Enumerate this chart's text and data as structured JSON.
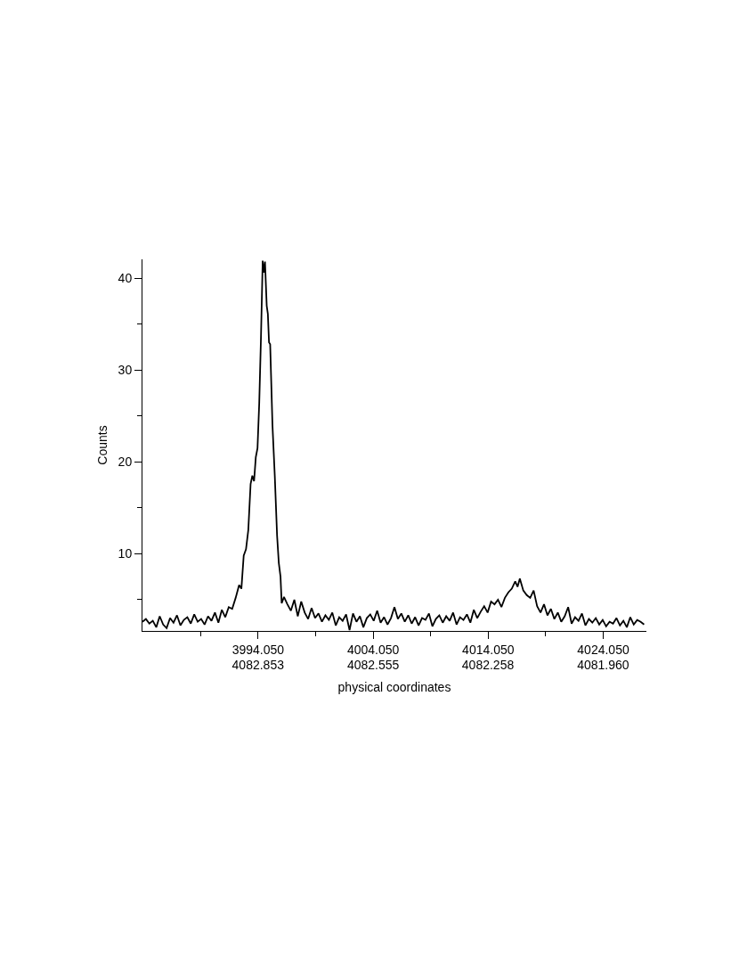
{
  "chart_data": {
    "type": "line",
    "xlabel": "physical coordinates",
    "ylabel": "Counts",
    "marker": "none",
    "line_style": "solid",
    "xlim": [
      3984.0,
      4027.8
    ],
    "ylim": [
      1.6,
      42.05
    ],
    "xticks": [
      {
        "value": 3989.05,
        "label": null
      },
      {
        "value": 3994.05,
        "label": "3994.050"
      },
      {
        "value": 3999.05,
        "label": null
      },
      {
        "value": 4004.05,
        "label": "4004.050"
      },
      {
        "value": 4009.05,
        "label": null
      },
      {
        "value": 4014.05,
        "label": "4014.050"
      },
      {
        "value": 4019.05,
        "label": null
      },
      {
        "value": 4024.05,
        "label": "4024.050"
      }
    ],
    "x2lim": [
      4083.152,
      4081.848
    ],
    "x2ticks": [
      {
        "value": 4082.853,
        "label": "4082.853"
      },
      {
        "value": 4082.555,
        "label": "4082.555"
      },
      {
        "value": 4082.258,
        "label": "4082.258"
      },
      {
        "value": 4081.96,
        "label": "4081.960"
      }
    ],
    "yticks": [
      {
        "value": 5,
        "label": null
      },
      10,
      {
        "value": 15,
        "label": null
      },
      20,
      {
        "value": 25,
        "label": null
      },
      30,
      {
        "value": 35,
        "label": null
      },
      40
    ],
    "series": [
      {
        "color": "#000000",
        "x": [
          3984.0,
          3984.3,
          3984.6,
          3984.9,
          3985.2,
          3985.5,
          3985.8,
          3986.1,
          3986.4,
          3986.7,
          3987.0,
          3987.3,
          3987.6,
          3987.9,
          3988.2,
          3988.5,
          3988.8,
          3989.1,
          3989.4,
          3989.7,
          3990.0,
          3990.3,
          3990.6,
          3990.9,
          3991.2,
          3991.5,
          3991.8,
          3992.1,
          3992.4,
          3992.6,
          3992.8,
          3993.0,
          3993.2,
          3993.4,
          3993.55,
          3993.7,
          3993.85,
          3994.0,
          3994.15,
          3994.3,
          3994.45,
          3994.55,
          3994.65,
          3994.8,
          3994.9,
          3995.0,
          3995.1,
          3995.3,
          3995.5,
          3995.7,
          3995.85,
          3996.0,
          3996.1,
          3996.3,
          3996.6,
          3996.9,
          3997.2,
          3997.5,
          3997.8,
          3998.1,
          3998.4,
          3998.7,
          3999.0,
          3999.3,
          3999.6,
          3999.9,
          4000.2,
          4000.5,
          4000.8,
          4001.1,
          4001.4,
          4001.7,
          4002.0,
          4002.3,
          4002.6,
          4002.9,
          4003.2,
          4003.5,
          4003.8,
          4004.1,
          4004.4,
          4004.7,
          4005.0,
          4005.3,
          4005.6,
          4005.9,
          4006.2,
          4006.5,
          4006.8,
          4007.1,
          4007.4,
          4007.7,
          4008.0,
          4008.3,
          4008.6,
          4008.9,
          4009.2,
          4009.5,
          4009.8,
          4010.1,
          4010.4,
          4010.7,
          4011.0,
          4011.3,
          4011.6,
          4011.9,
          4012.2,
          4012.5,
          4012.8,
          4013.1,
          4013.4,
          4013.7,
          4014.0,
          4014.3,
          4014.6,
          4014.9,
          4015.2,
          4015.5,
          4015.8,
          4016.1,
          4016.4,
          4016.6,
          4016.8,
          4017.1,
          4017.4,
          4017.7,
          4018.0,
          4018.3,
          4018.6,
          4018.9,
          4019.2,
          4019.5,
          4019.8,
          4020.1,
          4020.4,
          4020.7,
          4021.0,
          4021.3,
          4021.6,
          4021.9,
          4022.2,
          4022.5,
          4022.8,
          4023.1,
          4023.4,
          4023.7,
          4024.0,
          4024.3,
          4024.6,
          4024.9,
          4025.2,
          4025.5,
          4025.8,
          4026.1,
          4026.4,
          4026.7,
          4027.0,
          4027.3,
          4027.6
        ],
        "values": [
          2.6,
          2.9,
          2.4,
          2.7,
          2.0,
          3.2,
          2.3,
          1.9,
          3.0,
          2.5,
          3.3,
          2.2,
          2.8,
          3.1,
          2.4,
          3.4,
          2.6,
          2.9,
          2.3,
          3.2,
          2.7,
          3.6,
          2.5,
          3.9,
          3.1,
          4.2,
          4.0,
          5.2,
          6.6,
          6.2,
          9.8,
          10.5,
          12.6,
          17.6,
          18.5,
          17.9,
          20.5,
          21.5,
          26.4,
          33.5,
          41.9,
          40.6,
          41.8,
          37.0,
          36.1,
          33.0,
          32.8,
          24.0,
          18.5,
          12.0,
          9.0,
          7.5,
          4.6,
          5.3,
          4.5,
          3.8,
          5.0,
          3.2,
          4.8,
          3.6,
          2.9,
          4.1,
          3.0,
          3.5,
          2.6,
          3.3,
          2.8,
          3.6,
          2.2,
          3.1,
          2.7,
          3.4,
          1.7,
          3.5,
          2.6,
          3.2,
          2.0,
          3.0,
          3.4,
          2.7,
          3.8,
          2.5,
          3.1,
          2.3,
          3.0,
          4.2,
          2.9,
          3.5,
          2.6,
          3.3,
          2.4,
          3.1,
          2.2,
          3.0,
          2.8,
          3.5,
          2.1,
          2.9,
          3.3,
          2.5,
          3.2,
          2.7,
          3.6,
          2.3,
          3.1,
          2.8,
          3.4,
          2.5,
          3.9,
          3.0,
          3.7,
          4.3,
          3.6,
          4.8,
          4.5,
          5.0,
          4.2,
          5.2,
          5.8,
          6.2,
          7.0,
          6.4,
          7.3,
          6.0,
          5.5,
          5.2,
          6.0,
          4.3,
          3.6,
          4.5,
          3.3,
          4.0,
          2.9,
          3.6,
          2.6,
          3.2,
          4.2,
          2.4,
          3.1,
          2.7,
          3.5,
          2.2,
          2.9,
          2.5,
          3.0,
          2.3,
          2.8,
          2.1,
          2.6,
          2.4,
          3.0,
          2.2,
          2.7,
          2.0,
          3.1,
          2.3,
          2.8,
          2.6,
          2.3
        ]
      }
    ]
  }
}
